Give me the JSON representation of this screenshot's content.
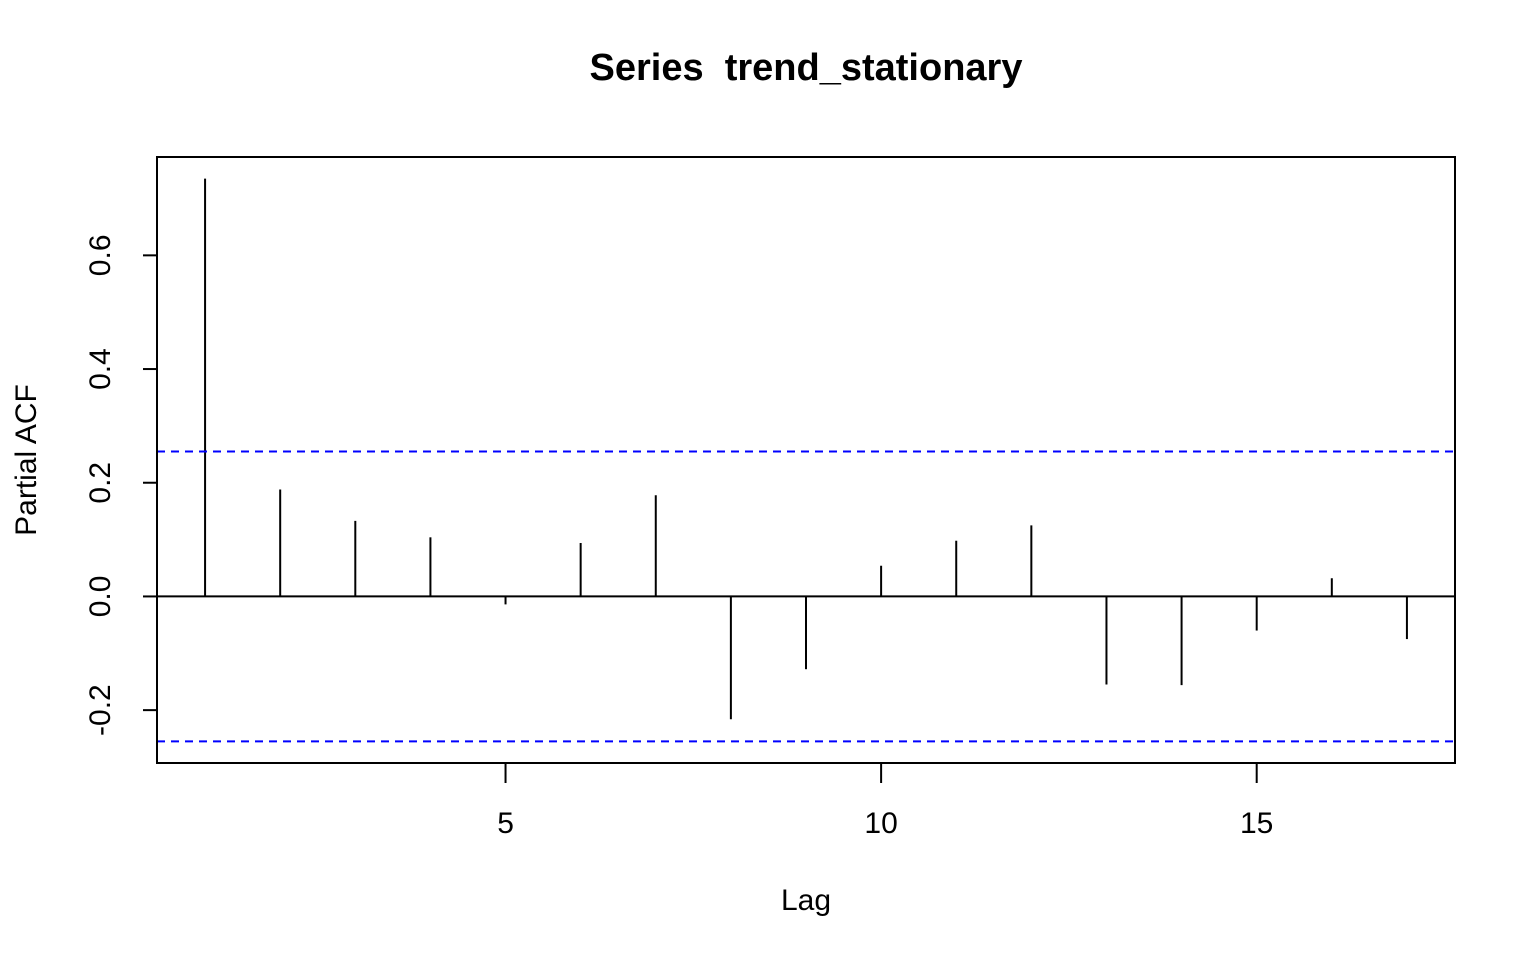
{
  "chart_data": {
    "type": "bar",
    "title": "Series  trend_stationary",
    "xlabel": "Lag",
    "ylabel": "Partial ACF",
    "x": [
      1,
      2,
      3,
      4,
      5,
      6,
      7,
      8,
      9,
      10,
      11,
      12,
      13,
      14,
      15,
      16,
      17
    ],
    "values": [
      0.735,
      0.188,
      0.133,
      0.104,
      -0.014,
      0.094,
      0.178,
      -0.216,
      -0.128,
      0.054,
      0.098,
      0.125,
      -0.155,
      -0.156,
      -0.06,
      0.032,
      -0.075
    ],
    "xticks": [
      5,
      10,
      15
    ],
    "xtick_labels": [
      "5",
      "10",
      "15"
    ],
    "yticks": [
      -0.2,
      0.0,
      0.2,
      0.4,
      0.6
    ],
    "ytick_labels": [
      "-0.2",
      "0.0",
      "0.2",
      "0.4",
      "0.6"
    ],
    "xlim": [
      0.36,
      17.64
    ],
    "ylim": [
      -0.293,
      0.773
    ],
    "confidence_limit": 0.255,
    "confidence_color": "#0000ff",
    "bar_color": "#000000",
    "grid": false,
    "legend": "none"
  }
}
